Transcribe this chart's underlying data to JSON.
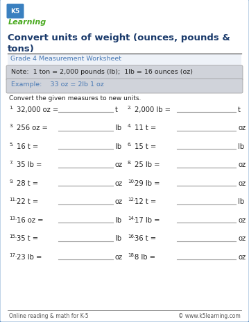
{
  "title": "Convert units of weight (ounces, pounds &\ntons)",
  "subtitle": "Grade 4 Measurement Worksheet",
  "note": "Note:  1 ton = 2,000 pounds (lb);  1lb = 16 ounces (oz)",
  "example": "Example:    33 oz = 2lb 1 oz",
  "instruction": "Convert the given measures to new units.",
  "problems": [
    [
      "1.",
      "32,000 oz =",
      "t",
      "2.",
      "2,000 lb =",
      "t"
    ],
    [
      "3.",
      "256 oz =",
      "lb",
      "4.",
      "11 t =",
      "oz"
    ],
    [
      "5.",
      "16 t =",
      "lb",
      "6.",
      "15 t =",
      "lb"
    ],
    [
      "7.",
      "35 lb =",
      "oz",
      "8.",
      "25 lb =",
      "oz"
    ],
    [
      "9.",
      "28 t =",
      "oz",
      "10.",
      "29 lb =",
      "oz"
    ],
    [
      "11.",
      "22 t =",
      "oz",
      "12.",
      "12 t =",
      "lb"
    ],
    [
      "13.",
      "16 oz =",
      "lb",
      "14.",
      "17 lb =",
      "oz"
    ],
    [
      "15.",
      "35 t =",
      "lb",
      "16.",
      "36 t =",
      "oz"
    ],
    [
      "17.",
      "23 lb =",
      "oz",
      "18.",
      "8 lb =",
      "oz"
    ]
  ],
  "footer_left": "Online reading & math for K-5",
  "footer_right": "© www.k5learning.com",
  "border_color": "#5b8ec4",
  "title_color": "#1a3a6b",
  "subtitle_color": "#4a7ab5",
  "note_bg": "#d0d3da",
  "example_bg": "#d0d3da",
  "text_color": "#222222",
  "line_color": "#999999",
  "footer_color": "#555555",
  "logo_k5_color": "#1a6ab0",
  "logo_learning_color": "#4aaa20"
}
